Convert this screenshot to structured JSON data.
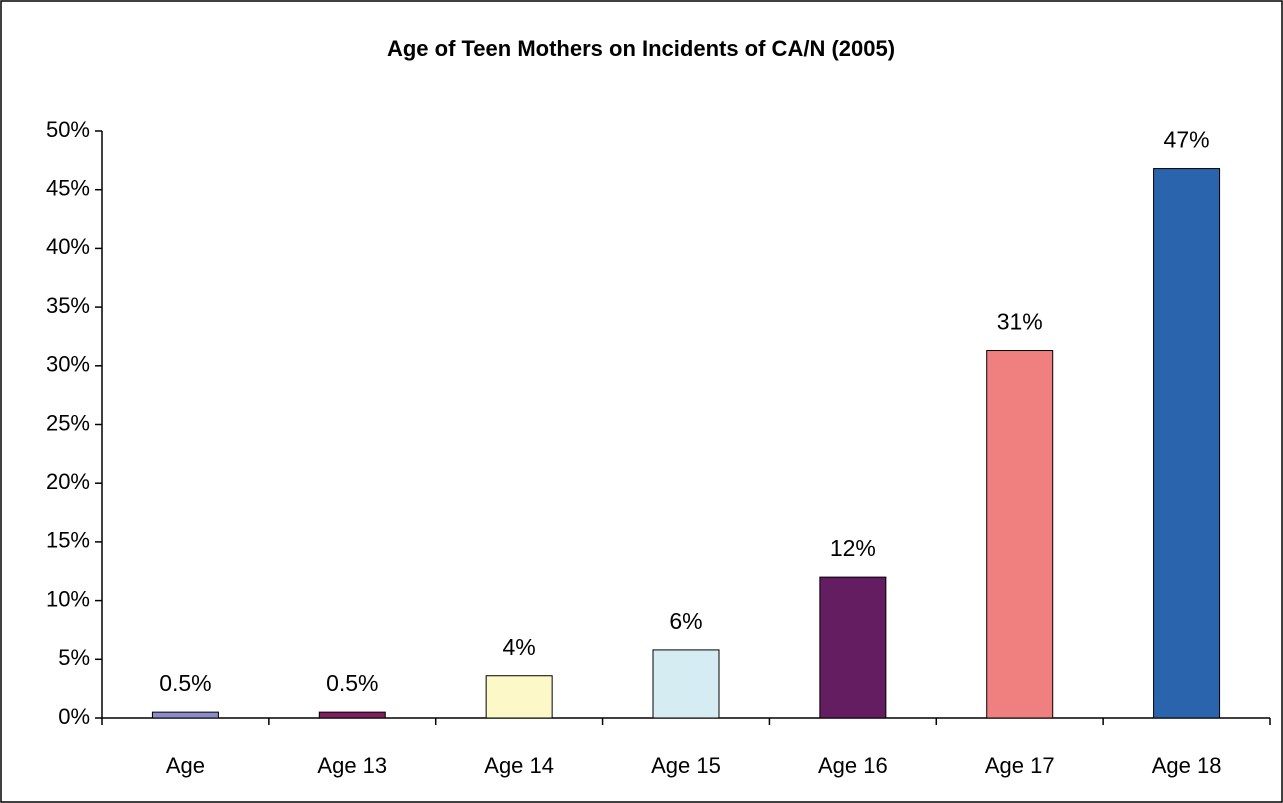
{
  "chart_data": {
    "type": "bar",
    "title": "Age of Teen Mothers on Incidents of CA/N (2005)",
    "categories": [
      "Age",
      "Age 13",
      "Age 14",
      "Age 15",
      "Age 16",
      "Age 17",
      "Age 18"
    ],
    "values": [
      0.5,
      0.5,
      3.6,
      5.8,
      12.0,
      31.3,
      46.8
    ],
    "value_labels": [
      "0.5%",
      "0.5%",
      "4%",
      "6%",
      "12%",
      "31%",
      "47%"
    ],
    "colors": [
      "#8c8cc8",
      "#7f1f5f",
      "#fcf8c8",
      "#d4ecf2",
      "#631d60",
      "#f08080",
      "#2a64ad"
    ],
    "ylim": [
      0,
      50
    ],
    "yticks": [
      {
        "value": 0,
        "label": "0%"
      },
      {
        "value": 5,
        "label": "5%"
      },
      {
        "value": 10,
        "label": "10%"
      },
      {
        "value": 15,
        "label": "15%"
      },
      {
        "value": 20,
        "label": "20%"
      },
      {
        "value": 25,
        "label": "25%"
      },
      {
        "value": 30,
        "label": "30%"
      },
      {
        "value": 35,
        "label": "35%"
      },
      {
        "value": 40,
        "label": "40%"
      },
      {
        "value": 45,
        "label": "45%"
      },
      {
        "value": 50,
        "label": "50%"
      }
    ],
    "grid": false
  }
}
